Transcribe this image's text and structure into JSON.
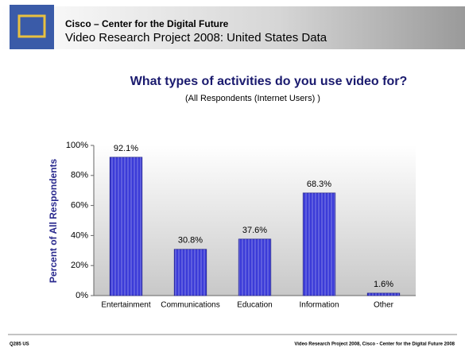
{
  "header": {
    "organization": "Cisco – Center for the Digital Future",
    "title": "Video Research Project 2008: United States Data"
  },
  "chart_data": {
    "type": "bar",
    "title": "What types of activities do you use video for?",
    "subtitle": "(All Respondents (Internet Users) )",
    "y_label": "Percent of All Respondents",
    "categories": [
      "Entertainment",
      "Communications",
      "Education",
      "Information",
      "Other"
    ],
    "values": [
      92.1,
      30.8,
      37.6,
      68.3,
      1.6
    ],
    "value_labels": [
      "92.1%",
      "30.8%",
      "37.6%",
      "68.3%",
      "1.6%"
    ],
    "color": "#3b3bd8",
    "ylim": [
      0,
      100
    ],
    "yticks": [
      {
        "value": 0,
        "label": "0%"
      },
      {
        "value": 20,
        "label": "20%"
      },
      {
        "value": 40,
        "label": "40%"
      },
      {
        "value": 60,
        "label": "60%"
      },
      {
        "value": 80,
        "label": "80%"
      },
      {
        "value": 100,
        "label": "100%"
      }
    ]
  },
  "footer": {
    "left": "Q285 US",
    "right": "Video Research Project 2008, Cisco - Center for the Digital Future 2008"
  }
}
